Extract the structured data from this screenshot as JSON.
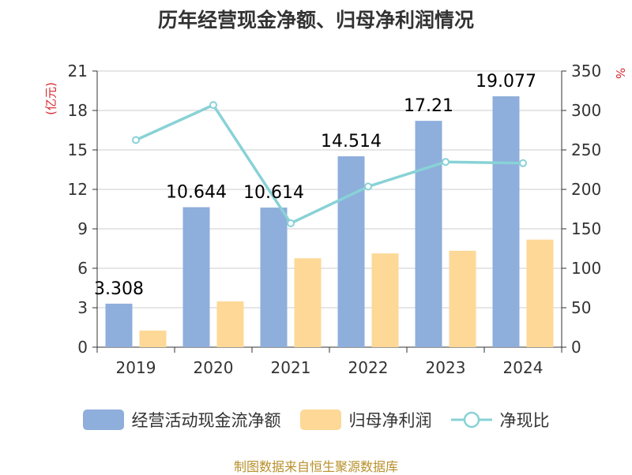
{
  "chart_data": {
    "type": "bar",
    "title": "历年经营现金净额、归母净利润情况",
    "left_axis_label": "(亿元)",
    "right_axis_label": "%",
    "categories": [
      "2019",
      "2020",
      "2021",
      "2022",
      "2023",
      "2024"
    ],
    "left_axis": {
      "min": 0,
      "max": 21,
      "ticks": [
        "0",
        "3",
        "6",
        "9",
        "12",
        "15",
        "18",
        "21"
      ]
    },
    "right_axis": {
      "min": 0,
      "max": 350,
      "ticks": [
        "0",
        "50",
        "100",
        "150",
        "200",
        "250",
        "300",
        "350"
      ]
    },
    "grid": true,
    "legend_position": "bottom",
    "series": [
      {
        "name": "经营活动现金流净额",
        "type": "bar",
        "axis": "left",
        "color": "#8eaedc",
        "values": [
          3.308,
          10.644,
          10.614,
          14.514,
          17.21,
          19.077
        ],
        "labels": [
          "3.308",
          "10.644",
          "10.614",
          "14.514",
          "17.21",
          "19.077"
        ]
      },
      {
        "name": "归母净利润",
        "type": "bar",
        "axis": "left",
        "color": "#fdd896",
        "values": [
          1.26,
          3.48,
          6.76,
          7.13,
          7.33,
          8.18
        ]
      },
      {
        "name": "净现比",
        "type": "line",
        "axis": "right",
        "color": "#88d2d6",
        "values": [
          262.5,
          306.9,
          157.0,
          203.6,
          234.8,
          233.2
        ]
      }
    ]
  },
  "legend": {
    "items": [
      {
        "label": "经营活动现金流净额",
        "color": "#8eaedc"
      },
      {
        "label": "归母净利润",
        "color": "#fdd896"
      },
      {
        "label": "净现比",
        "color": "#88d2d6"
      }
    ]
  },
  "source": "制图数据来自恒生聚源数据库"
}
